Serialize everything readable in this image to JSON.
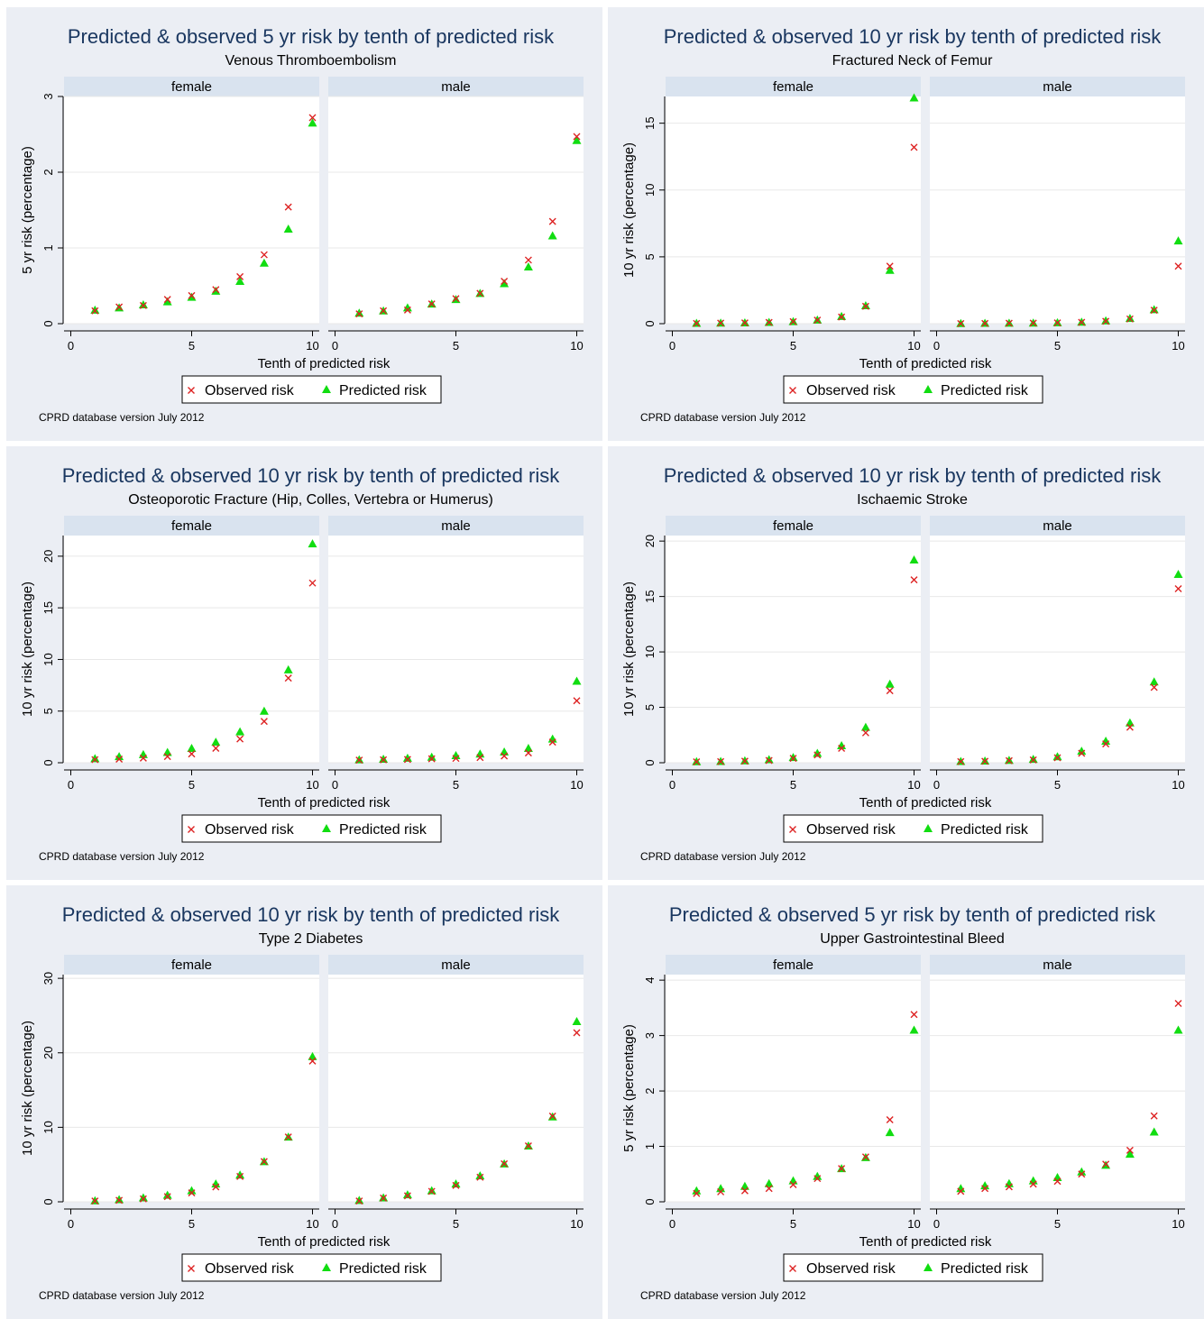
{
  "common": {
    "facets": [
      "female",
      "male"
    ],
    "xlabel": "Tenth of predicted risk",
    "legend": {
      "observed": "Observed risk",
      "predicted": "Predicted risk"
    },
    "note": "CPRD database version July 2012",
    "colors": {
      "observed": "#dd2222",
      "predicted": "#11dd11",
      "title": "#1a3760",
      "panel_bg": "#ebeef4",
      "facet_bg": "#d9e3ef",
      "grid": "#e8e8e8"
    }
  },
  "chart_data": [
    {
      "type": "scatter",
      "title": "Predicted & observed 5 yr risk by tenth of predicted risk",
      "subtitle": "Venous Thromboembolism",
      "ylabel": "5 yr risk (percentage)",
      "xlabel": "Tenth of predicted risk",
      "xlim": [
        0,
        10
      ],
      "xticks": [
        0,
        5,
        10
      ],
      "ylim": [
        0,
        3
      ],
      "yticks": [
        0,
        1,
        2,
        3
      ],
      "facets": [
        {
          "name": "female",
          "x": [
            1,
            2,
            3,
            4,
            5,
            6,
            7,
            8,
            9,
            10
          ],
          "series": [
            {
              "name": "Observed risk",
              "values": [
                0.17,
                0.22,
                0.24,
                0.32,
                0.37,
                0.45,
                0.62,
                0.91,
                1.54,
                2.72
              ]
            },
            {
              "name": "Predicted risk",
              "values": [
                0.18,
                0.21,
                0.25,
                0.29,
                0.35,
                0.43,
                0.56,
                0.8,
                1.25,
                2.65
              ]
            }
          ]
        },
        {
          "name": "male",
          "x": [
            1,
            2,
            3,
            4,
            5,
            6,
            7,
            8,
            9,
            10
          ],
          "series": [
            {
              "name": "Observed risk",
              "values": [
                0.13,
                0.17,
                0.18,
                0.26,
                0.33,
                0.4,
                0.56,
                0.84,
                1.35,
                2.47
              ]
            },
            {
              "name": "Predicted risk",
              "values": [
                0.14,
                0.17,
                0.21,
                0.26,
                0.32,
                0.4,
                0.53,
                0.75,
                1.16,
                2.42
              ]
            }
          ]
        }
      ]
    },
    {
      "type": "scatter",
      "title": "Predicted & observed 10 yr risk by tenth of predicted risk",
      "subtitle": "Fractured Neck of Femur",
      "ylabel": "10 yr risk (percentage)",
      "xlabel": "Tenth of predicted risk",
      "xlim": [
        0,
        10
      ],
      "xticks": [
        0,
        5,
        10
      ],
      "ylim": [
        0,
        17
      ],
      "yticks": [
        0,
        5,
        10,
        15
      ],
      "facets": [
        {
          "name": "female",
          "x": [
            1,
            2,
            3,
            4,
            5,
            6,
            7,
            8,
            9,
            10
          ],
          "series": [
            {
              "name": "Observed risk",
              "values": [
                0.02,
                0.04,
                0.06,
                0.09,
                0.15,
                0.26,
                0.5,
                1.3,
                4.3,
                13.2
              ]
            },
            {
              "name": "Predicted risk",
              "values": [
                0.03,
                0.05,
                0.07,
                0.1,
                0.16,
                0.28,
                0.55,
                1.35,
                4.0,
                16.9
              ]
            }
          ]
        },
        {
          "name": "male",
          "x": [
            1,
            2,
            3,
            4,
            5,
            6,
            7,
            8,
            9,
            10
          ],
          "series": [
            {
              "name": "Observed risk",
              "values": [
                0.01,
                0.02,
                0.03,
                0.04,
                0.06,
                0.1,
                0.18,
                0.35,
                1.0,
                4.3
              ]
            },
            {
              "name": "Predicted risk",
              "values": [
                0.02,
                0.03,
                0.04,
                0.05,
                0.08,
                0.12,
                0.22,
                0.4,
                1.05,
                6.2
              ]
            }
          ]
        }
      ]
    },
    {
      "type": "scatter",
      "title": "Predicted & observed 10 yr risk by tenth of predicted risk",
      "subtitle": "Osteoporotic Fracture (Hip, Colles, Vertebra or Humerus)",
      "ylabel": "10 yr risk (percentage)",
      "xlabel": "Tenth of predicted risk",
      "xlim": [
        0,
        10
      ],
      "xticks": [
        0,
        5,
        10
      ],
      "ylim": [
        0,
        22
      ],
      "yticks": [
        0,
        5,
        10,
        15,
        20
      ],
      "facets": [
        {
          "name": "female",
          "x": [
            1,
            2,
            3,
            4,
            5,
            6,
            7,
            8,
            9,
            10
          ],
          "series": [
            {
              "name": "Observed risk",
              "values": [
                0.3,
                0.35,
                0.45,
                0.6,
                0.85,
                1.4,
                2.3,
                4.0,
                8.2,
                17.4
              ]
            },
            {
              "name": "Predicted risk",
              "values": [
                0.4,
                0.6,
                0.8,
                1.0,
                1.4,
                2.0,
                3.0,
                5.0,
                9.0,
                21.2
              ]
            }
          ]
        },
        {
          "name": "male",
          "x": [
            1,
            2,
            3,
            4,
            5,
            6,
            7,
            8,
            9,
            10
          ],
          "series": [
            {
              "name": "Observed risk",
              "values": [
                0.25,
                0.28,
                0.32,
                0.38,
                0.42,
                0.5,
                0.65,
                0.95,
                2.0,
                6.0
              ]
            },
            {
              "name": "Predicted risk",
              "values": [
                0.3,
                0.35,
                0.45,
                0.55,
                0.7,
                0.85,
                1.05,
                1.4,
                2.3,
                7.9
              ]
            }
          ]
        }
      ]
    },
    {
      "type": "scatter",
      "title": "Predicted & observed 10 yr risk by tenth of predicted risk",
      "subtitle": "Ischaemic Stroke",
      "ylabel": "10 yr risk (percentage)",
      "xlabel": "Tenth of predicted risk",
      "xlim": [
        0,
        10
      ],
      "xticks": [
        0,
        5,
        10
      ],
      "ylim": [
        0,
        20.5
      ],
      "yticks": [
        0,
        5,
        10,
        15,
        20
      ],
      "facets": [
        {
          "name": "female",
          "x": [
            1,
            2,
            3,
            4,
            5,
            6,
            7,
            8,
            9,
            10
          ],
          "series": [
            {
              "name": "Observed risk",
              "values": [
                0.08,
                0.1,
                0.14,
                0.2,
                0.4,
                0.7,
                1.3,
                2.7,
                6.5,
                16.5
              ]
            },
            {
              "name": "Predicted risk",
              "values": [
                0.1,
                0.12,
                0.18,
                0.28,
                0.48,
                0.85,
                1.55,
                3.2,
                7.1,
                18.3
              ]
            }
          ]
        },
        {
          "name": "male",
          "x": [
            1,
            2,
            3,
            4,
            5,
            6,
            7,
            8,
            9,
            10
          ],
          "series": [
            {
              "name": "Observed risk",
              "values": [
                0.1,
                0.13,
                0.18,
                0.25,
                0.45,
                0.85,
                1.7,
                3.2,
                6.8,
                15.7
              ]
            },
            {
              "name": "Predicted risk",
              "values": [
                0.12,
                0.16,
                0.22,
                0.32,
                0.55,
                1.05,
                1.95,
                3.6,
                7.3,
                17.0
              ]
            }
          ]
        }
      ]
    },
    {
      "type": "scatter",
      "title": "Predicted & observed 10 yr risk by tenth of predicted risk",
      "subtitle": "Type 2 Diabetes",
      "ylabel": "10 yr risk (percentage)",
      "xlabel": "Tenth of predicted risk",
      "xlim": [
        0,
        10
      ],
      "xticks": [
        0,
        5,
        10
      ],
      "ylim": [
        0,
        30.5
      ],
      "yticks": [
        0,
        10,
        20,
        30
      ],
      "facets": [
        {
          "name": "female",
          "x": [
            1,
            2,
            3,
            4,
            5,
            6,
            7,
            8,
            9,
            10
          ],
          "series": [
            {
              "name": "Observed risk",
              "values": [
                0.1,
                0.2,
                0.4,
                0.7,
                1.2,
                2.0,
                3.4,
                5.4,
                8.7,
                18.9
              ]
            },
            {
              "name": "Predicted risk",
              "values": [
                0.15,
                0.3,
                0.55,
                0.9,
                1.5,
                2.4,
                3.6,
                5.4,
                8.7,
                19.5
              ]
            }
          ]
        },
        {
          "name": "male",
          "x": [
            1,
            2,
            3,
            4,
            5,
            6,
            7,
            8,
            9,
            10
          ],
          "series": [
            {
              "name": "Observed risk",
              "values": [
                0.1,
                0.5,
                0.8,
                1.4,
                2.2,
                3.3,
                5.1,
                7.5,
                11.5,
                22.7
              ]
            },
            {
              "name": "Predicted risk",
              "values": [
                0.2,
                0.55,
                0.95,
                1.5,
                2.4,
                3.5,
                5.1,
                7.5,
                11.4,
                24.2
              ]
            }
          ]
        }
      ]
    },
    {
      "type": "scatter",
      "title": "Predicted & observed 5 yr risk by tenth of predicted risk",
      "subtitle": "Upper Gastrointestinal Bleed",
      "ylabel": "5 yr risk (percentage)",
      "xlabel": "Tenth of predicted risk",
      "xlim": [
        0,
        10
      ],
      "xticks": [
        0,
        5,
        10
      ],
      "ylim": [
        0,
        4.1
      ],
      "yticks": [
        0,
        1,
        2,
        3,
        4
      ],
      "facets": [
        {
          "name": "female",
          "x": [
            1,
            2,
            3,
            4,
            5,
            6,
            7,
            8,
            9,
            10
          ],
          "series": [
            {
              "name": "Observed risk",
              "values": [
                0.15,
                0.18,
                0.2,
                0.24,
                0.31,
                0.42,
                0.6,
                0.81,
                1.48,
                3.38
              ]
            },
            {
              "name": "Predicted risk",
              "values": [
                0.2,
                0.24,
                0.28,
                0.33,
                0.38,
                0.46,
                0.6,
                0.8,
                1.25,
                3.1
              ]
            }
          ]
        },
        {
          "name": "male",
          "x": [
            1,
            2,
            3,
            4,
            5,
            6,
            7,
            8,
            9,
            10
          ],
          "series": [
            {
              "name": "Observed risk",
              "values": [
                0.19,
                0.24,
                0.27,
                0.32,
                0.37,
                0.5,
                0.68,
                0.93,
                1.55,
                3.58
              ]
            },
            {
              "name": "Predicted risk",
              "values": [
                0.24,
                0.29,
                0.33,
                0.38,
                0.44,
                0.54,
                0.66,
                0.86,
                1.26,
                3.1
              ]
            }
          ]
        }
      ]
    }
  ]
}
